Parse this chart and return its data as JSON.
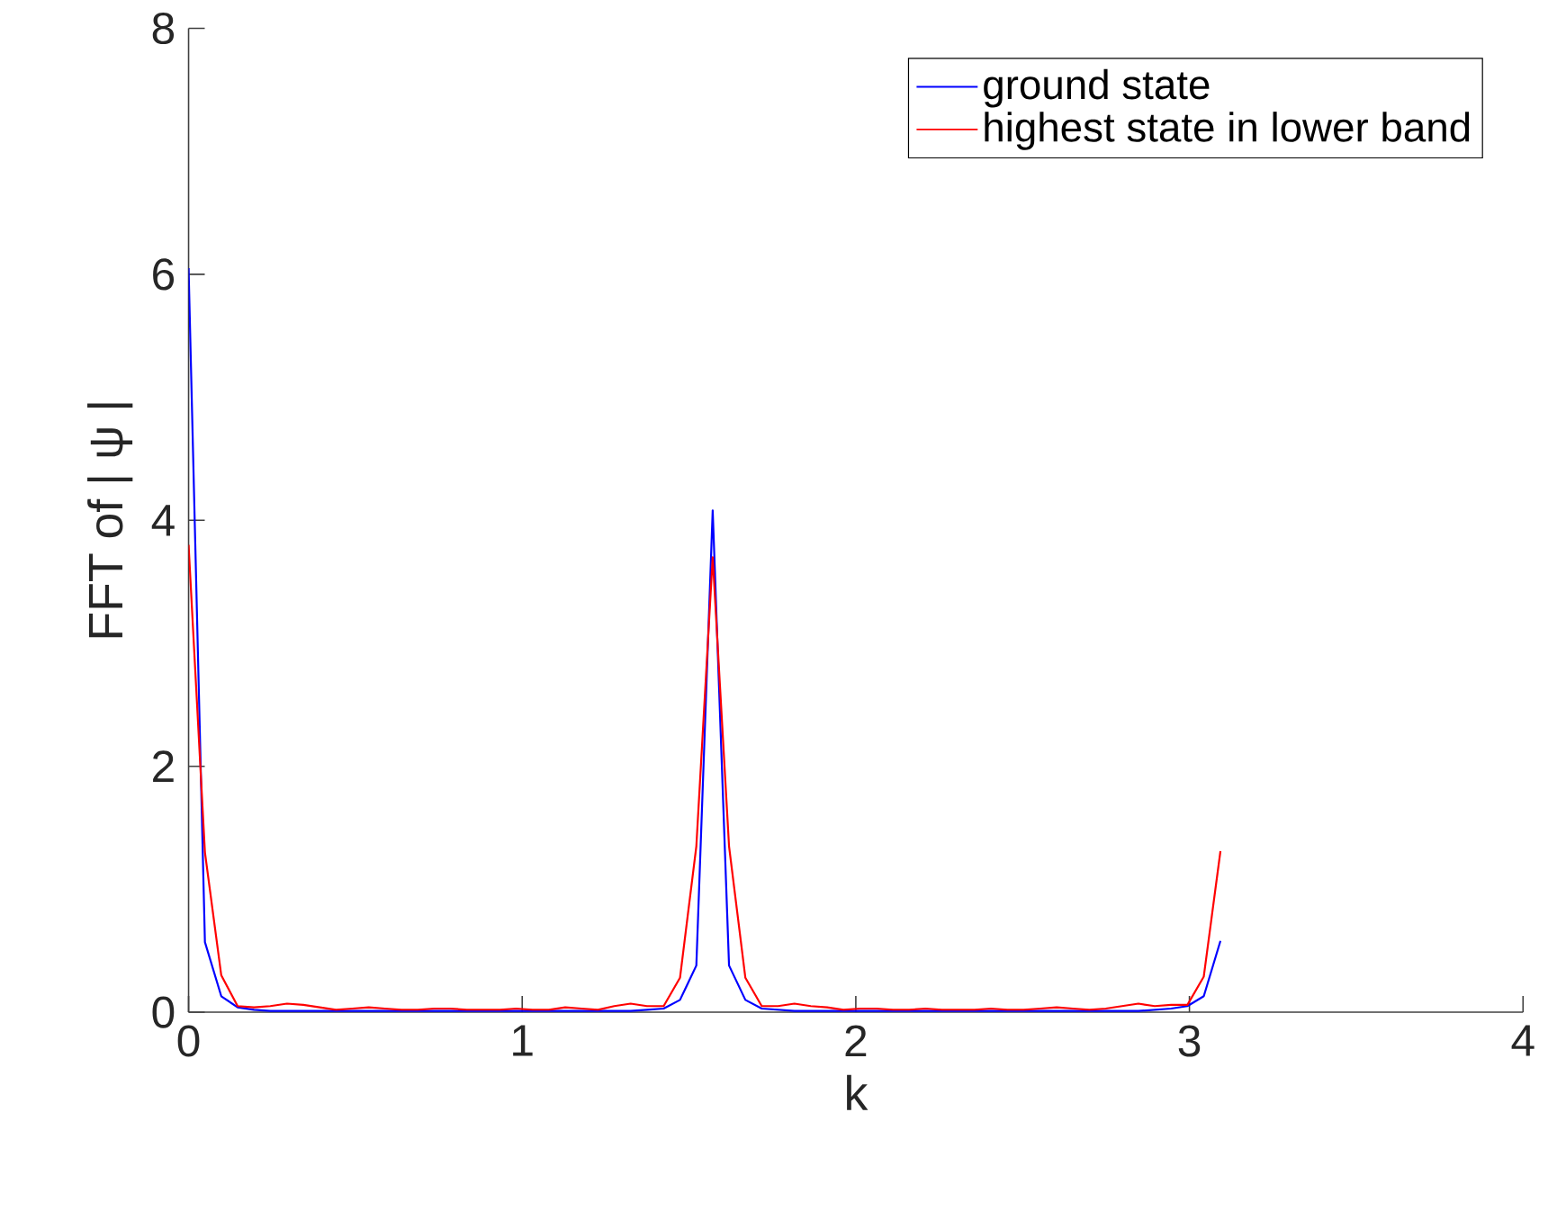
{
  "chart_data": {
    "type": "line",
    "xlabel": "k",
    "ylabel": "FFT of | ψ |",
    "x": [
      0,
      0.049,
      0.098,
      0.147,
      0.196,
      0.245,
      0.295,
      0.344,
      0.393,
      0.442,
      0.491,
      0.54,
      0.589,
      0.638,
      0.687,
      0.736,
      0.785,
      0.834,
      0.884,
      0.933,
      0.982,
      1.031,
      1.08,
      1.129,
      1.178,
      1.227,
      1.276,
      1.325,
      1.374,
      1.424,
      1.473,
      1.522,
      1.571,
      1.62,
      1.669,
      1.718,
      1.767,
      1.816,
      1.865,
      1.914,
      1.963,
      2.013,
      2.062,
      2.111,
      2.16,
      2.209,
      2.258,
      2.307,
      2.356,
      2.405,
      2.454,
      2.503,
      2.553,
      2.602,
      2.651,
      2.7,
      2.749,
      2.798,
      2.847,
      2.896,
      2.945,
      2.994,
      3.043,
      3.093
    ],
    "series": [
      {
        "name": "ground state",
        "color": "#0000ff",
        "values": [
          6.05,
          0.57,
          0.13,
          0.04,
          0.02,
          0.01,
          0.01,
          0.01,
          0.01,
          0.01,
          0.01,
          0.01,
          0.01,
          0.01,
          0.01,
          0.01,
          0.01,
          0.01,
          0.01,
          0.01,
          0.01,
          0.01,
          0.01,
          0.01,
          0.01,
          0.01,
          0.01,
          0.01,
          0.02,
          0.03,
          0.1,
          0.38,
          4.08,
          0.38,
          0.1,
          0.03,
          0.02,
          0.01,
          0.01,
          0.01,
          0.01,
          0.01,
          0.01,
          0.01,
          0.01,
          0.01,
          0.01,
          0.01,
          0.01,
          0.01,
          0.01,
          0.01,
          0.01,
          0.01,
          0.01,
          0.01,
          0.01,
          0.01,
          0.01,
          0.02,
          0.03,
          0.05,
          0.13,
          0.58
        ]
      },
      {
        "name": "highest state in lower band",
        "color": "#ff0000",
        "values": [
          3.8,
          1.3,
          0.3,
          0.05,
          0.04,
          0.05,
          0.07,
          0.06,
          0.04,
          0.02,
          0.03,
          0.04,
          0.03,
          0.02,
          0.02,
          0.03,
          0.03,
          0.02,
          0.02,
          0.02,
          0.03,
          0.02,
          0.02,
          0.04,
          0.03,
          0.02,
          0.05,
          0.07,
          0.05,
          0.05,
          0.28,
          1.35,
          3.7,
          1.35,
          0.28,
          0.05,
          0.05,
          0.07,
          0.05,
          0.04,
          0.02,
          0.03,
          0.03,
          0.02,
          0.02,
          0.03,
          0.02,
          0.02,
          0.02,
          0.03,
          0.02,
          0.02,
          0.03,
          0.04,
          0.03,
          0.02,
          0.03,
          0.05,
          0.07,
          0.05,
          0.06,
          0.06,
          0.29,
          1.31
        ]
      }
    ],
    "xlim": [
      0,
      4
    ],
    "ylim": [
      0,
      8
    ],
    "xticks": [
      0,
      1,
      2,
      3,
      4
    ],
    "yticks": [
      0,
      2,
      4,
      6,
      8
    ],
    "legend": "top right",
    "grid": false,
    "marker": "none",
    "line_style": "solid"
  }
}
